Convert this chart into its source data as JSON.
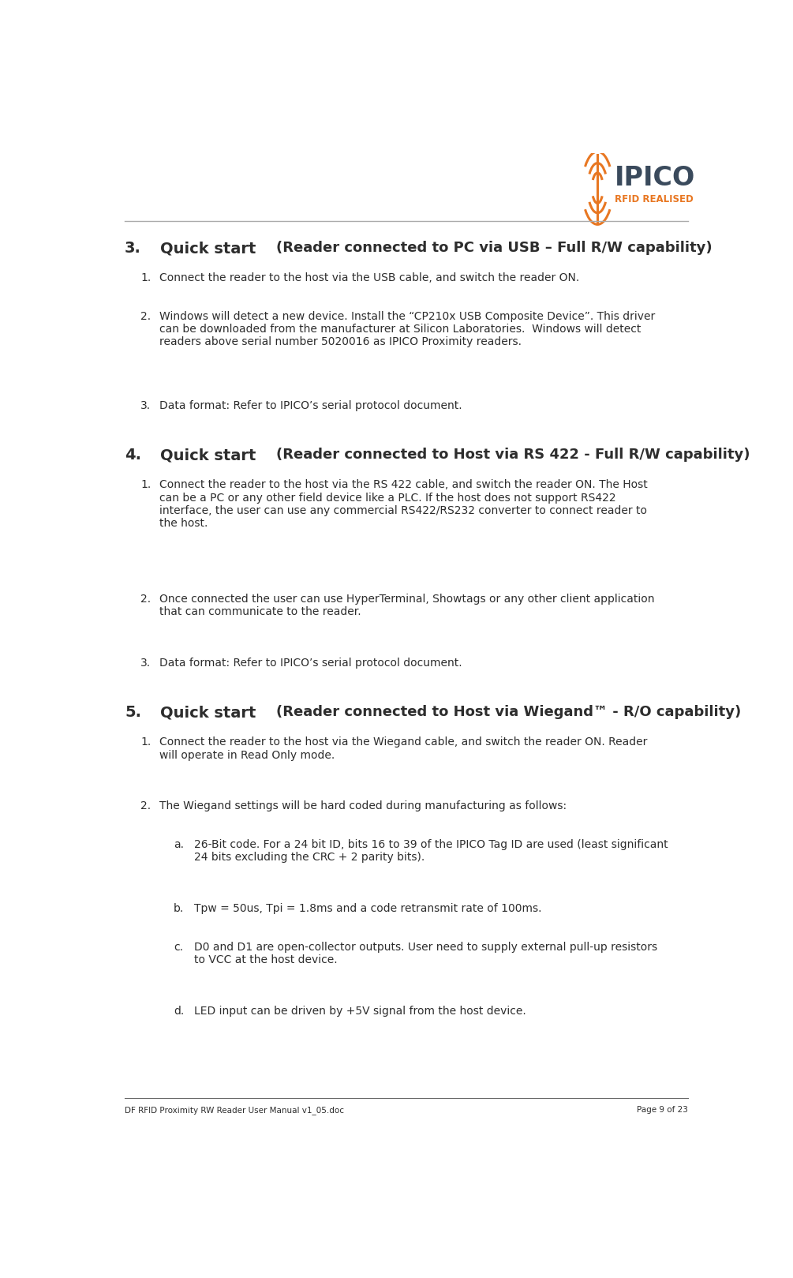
{
  "page_bg": "#ffffff",
  "text_color": "#2d2d2d",
  "orange_color": "#e87722",
  "ipico_color": "#3a4a5c",
  "footer_left": "DF RFID Proximity RW Reader User Manual v1_05.doc",
  "footer_right": "Page 9 of 23",
  "s3_num": "3.",
  "s3_bold": "Quick start",
  "s3_rest": "(Reader connected to PC via USB – Full R/W capability)",
  "s4_num": "4.",
  "s4_bold": "Quick start",
  "s4_rest": "(Reader connected to Host via RS 422 - Full R/W capability)",
  "s5_num": "5.",
  "s5_bold": "Quick start",
  "s5_rest": "(Reader connected to Host via Wiegand™ - R/O capability)",
  "s3_items": [
    [
      "1.",
      "Connect the reader to the host via the USB cable, and switch the reader ON."
    ],
    [
      "2.",
      "Windows will detect a new device. Install the “CP210x USB Composite Device”. This driver\ncan be downloaded from the manufacturer at Silicon Laboratories.  Windows will detect\nreaders above serial number 5020016 as IPICO Proximity readers."
    ],
    [
      "3.",
      "Data format: Refer to IPICO’s serial protocol document."
    ]
  ],
  "s4_items": [
    [
      "1.",
      "Connect the reader to the host via the RS 422 cable, and switch the reader ON. The Host\ncan be a PC or any other field device like a PLC. If the host does not support RS422\ninterface, the user can use any commercial RS422/RS232 converter to connect reader to\nthe host."
    ],
    [
      "2.",
      "Once connected the user can use HyperTerminal, Showtags or any other client application\nthat can communicate to the reader."
    ],
    [
      "3.",
      "Data format: Refer to IPICO’s serial protocol document."
    ]
  ],
  "s5_items": [
    [
      "1.",
      "Connect the reader to the host via the Wiegand cable, and switch the reader ON. Reader\nwill operate in Read Only mode."
    ],
    [
      "2.",
      "The Wiegand settings will be hard coded during manufacturing as follows:"
    ]
  ],
  "s5_sub_items": [
    [
      "a.",
      "26-Bit code. For a 24 bit ID, bits 16 to 39 of the IPICO Tag ID are used (least significant\n24 bits excluding the CRC + 2 parity bits)."
    ],
    [
      "b.",
      "Tpw = 50us, Tpi = 1.8ms and a code retransmit rate of 100ms."
    ],
    [
      "c.",
      "D0 and D1 are open-collector outputs. User need to supply external pull-up resistors\nto VCC at the host device."
    ],
    [
      "d.",
      "LED input can be driven by +5V signal from the host device."
    ]
  ]
}
